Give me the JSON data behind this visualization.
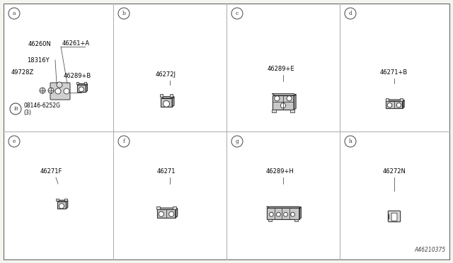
{
  "background_color": "#f5f5f0",
  "border_color": "#888888",
  "line_color": "#333333",
  "text_color": "#000000",
  "diagram_number": "A46210375",
  "col_dividers": [
    0.0,
    0.25,
    0.5,
    0.75,
    1.0
  ],
  "row_dividers": [
    0.0,
    0.5,
    1.0
  ],
  "panel_labels": [
    "a",
    "b",
    "c",
    "d",
    "e",
    "f",
    "g",
    "h"
  ],
  "panel_cols": [
    0,
    1,
    2,
    3,
    0,
    1,
    2,
    3
  ],
  "panel_rows": [
    0,
    0,
    0,
    0,
    1,
    1,
    1,
    1
  ],
  "panel_label_offsets": [
    0.025,
    0.95
  ],
  "part_numbers": [
    [
      "46260N",
      "46261+A",
      "18316Y",
      "49728Z",
      "46289+B",
      "08146-6252G",
      "(3)"
    ],
    [
      "46272J"
    ],
    [
      "46289+E"
    ],
    [
      "46271+B"
    ],
    [
      "46271F"
    ],
    [
      "46271"
    ],
    [
      "46289+H"
    ],
    [
      "46272N"
    ]
  ],
  "circle_b_label": "B",
  "font_size_label": 6.5,
  "font_size_part": 6.0,
  "font_size_diagram": 5.5
}
